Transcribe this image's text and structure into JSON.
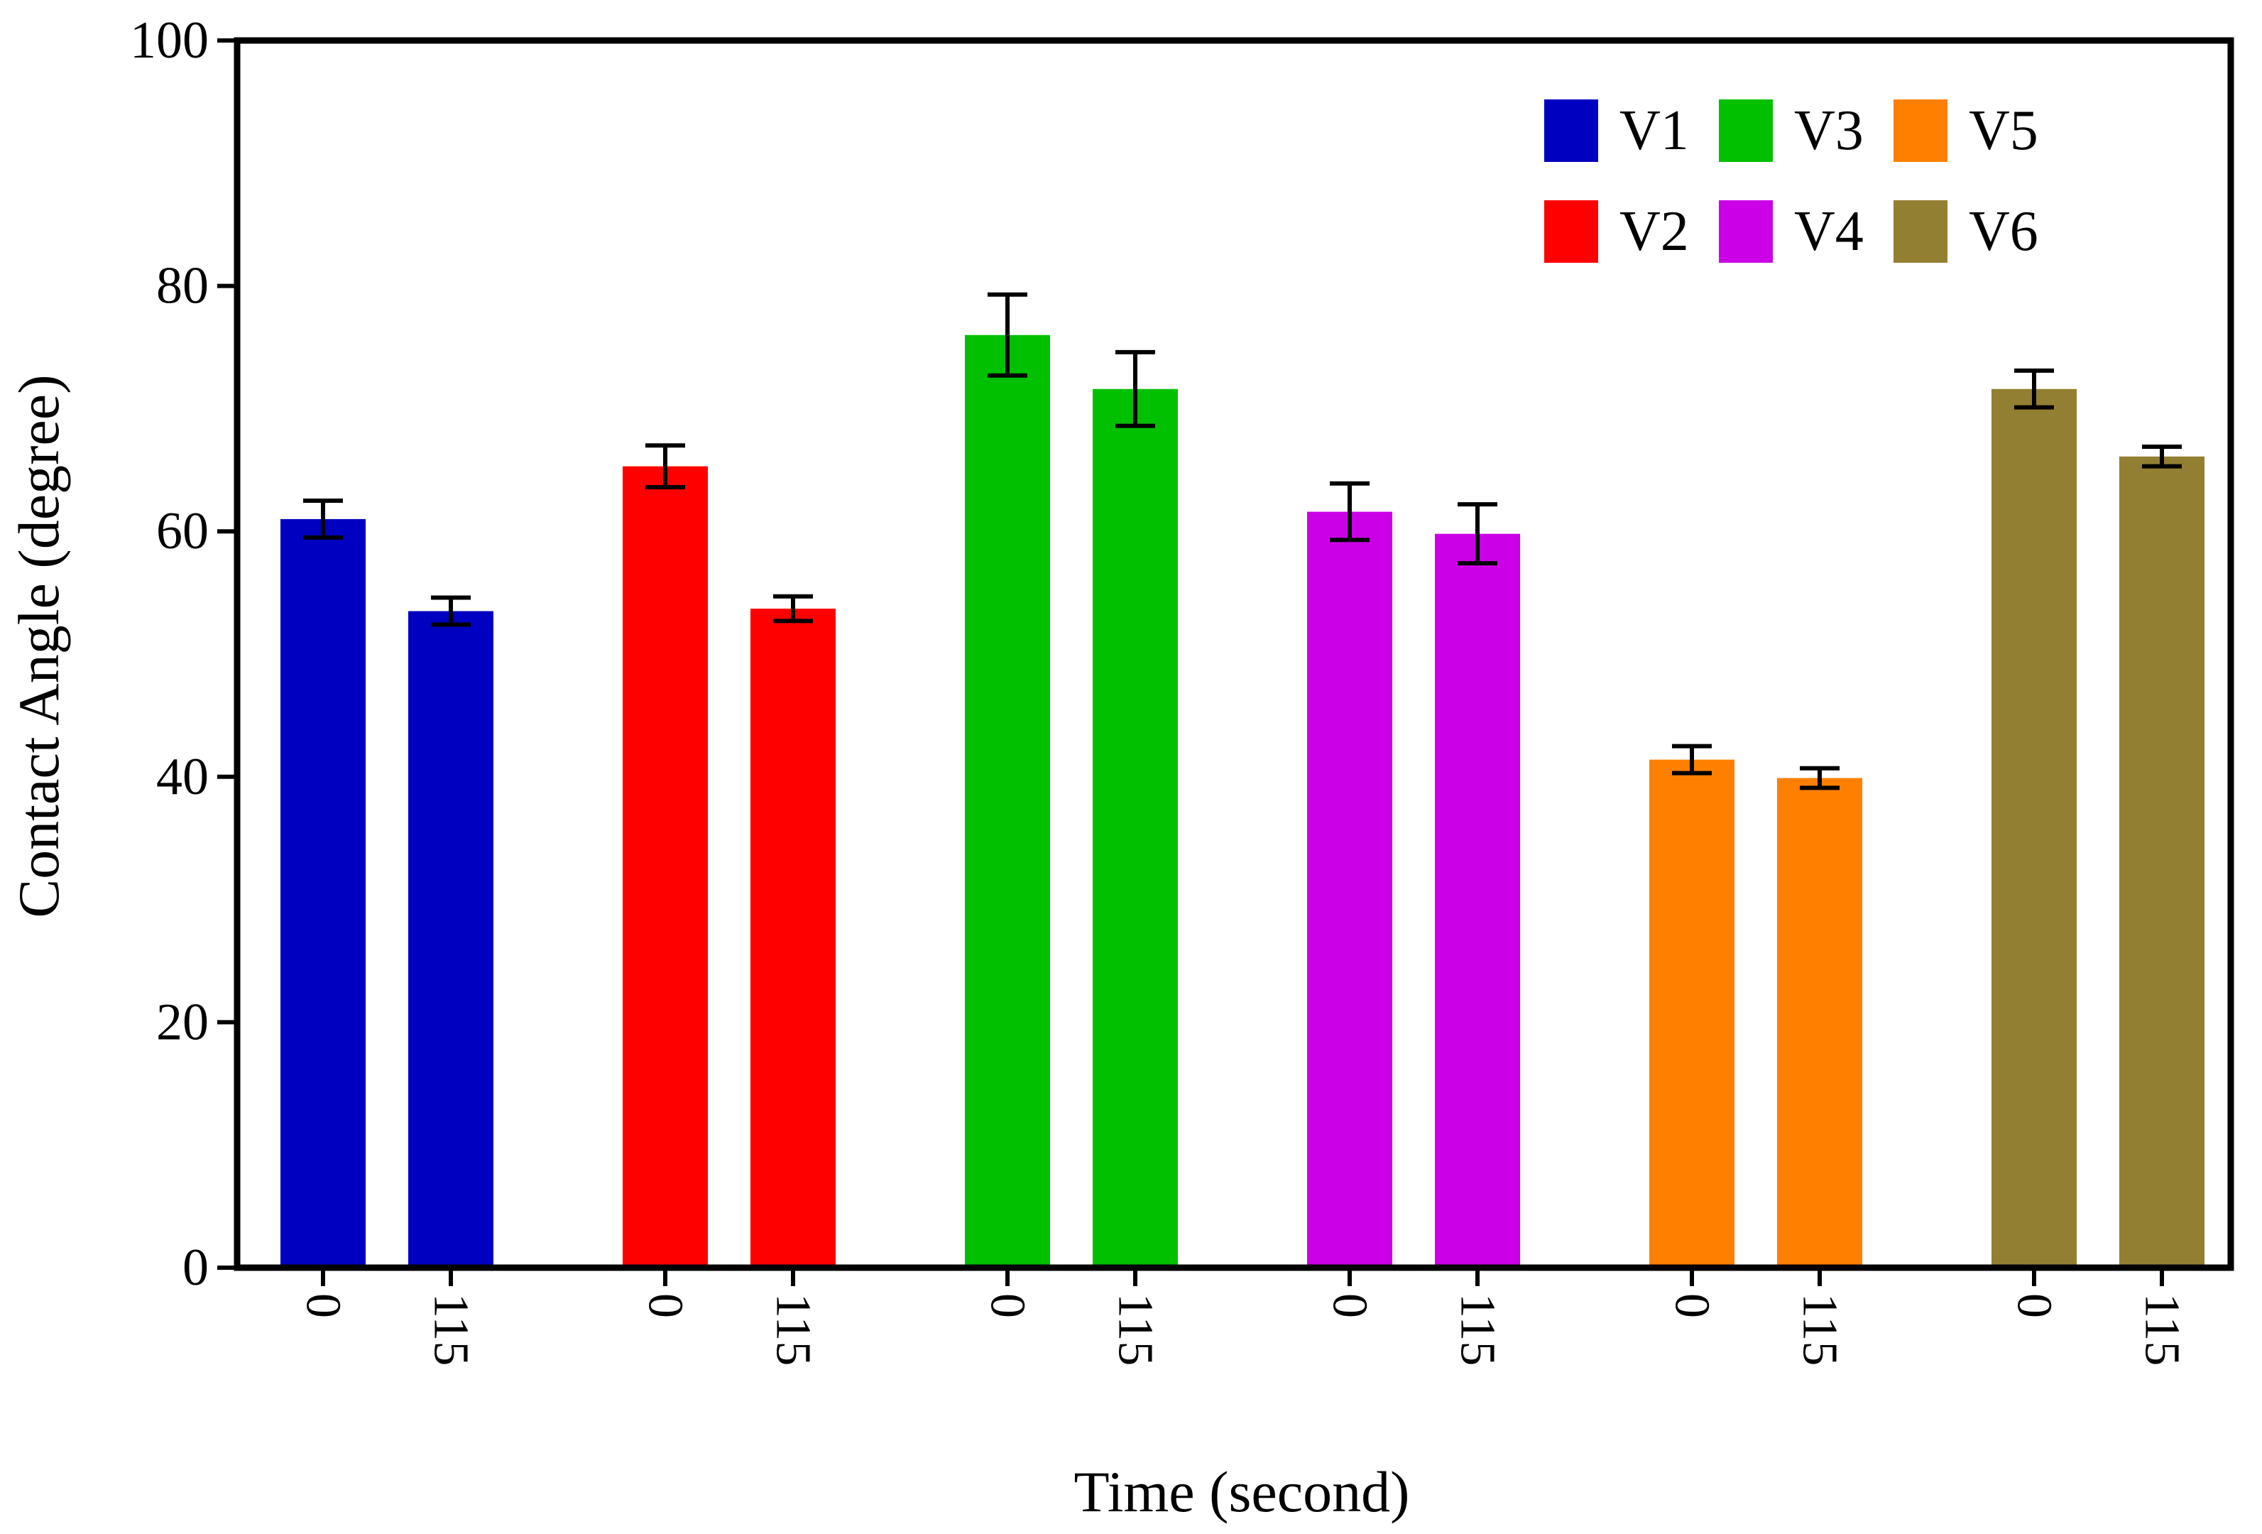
{
  "chart_data": {
    "type": "bar",
    "title": "",
    "xlabel": "Time (second)",
    "ylabel": "Contact Angle (degree)",
    "ylim": [
      0,
      100
    ],
    "yticks": [
      0,
      20,
      40,
      60,
      80,
      100
    ],
    "grid": false,
    "legend_position": "top-right",
    "legend_columns": 3,
    "groups": [
      {
        "name": "V1",
        "color": "#0000C0",
        "bars": [
          {
            "time": "0",
            "value": 61,
            "error": 1.5
          },
          {
            "time": "115",
            "value": 53.5,
            "error": 1.1
          }
        ]
      },
      {
        "name": "V2",
        "color": "#FF0000",
        "bars": [
          {
            "time": "0",
            "value": 65.3,
            "error": 1.7
          },
          {
            "time": "115",
            "value": 53.7,
            "error": 1.0
          }
        ]
      },
      {
        "name": "V3",
        "color": "#00C000",
        "bars": [
          {
            "time": "0",
            "value": 76,
            "error": 3.3
          },
          {
            "time": "115",
            "value": 71.6,
            "error": 3.0
          }
        ]
      },
      {
        "name": "V4",
        "color": "#CC00E6",
        "bars": [
          {
            "time": "0",
            "value": 61.6,
            "error": 2.3
          },
          {
            "time": "115",
            "value": 59.8,
            "error": 2.4
          }
        ]
      },
      {
        "name": "V5",
        "color": "#FF8000",
        "bars": [
          {
            "time": "0",
            "value": 41.4,
            "error": 1.1
          },
          {
            "time": "115",
            "value": 39.9,
            "error": 0.8
          }
        ]
      },
      {
        "name": "V6",
        "color": "#937F32",
        "bars": [
          {
            "time": "0",
            "value": 71.6,
            "error": 1.5
          },
          {
            "time": "115",
            "value": 66.1,
            "error": 0.8
          }
        ]
      }
    ]
  }
}
